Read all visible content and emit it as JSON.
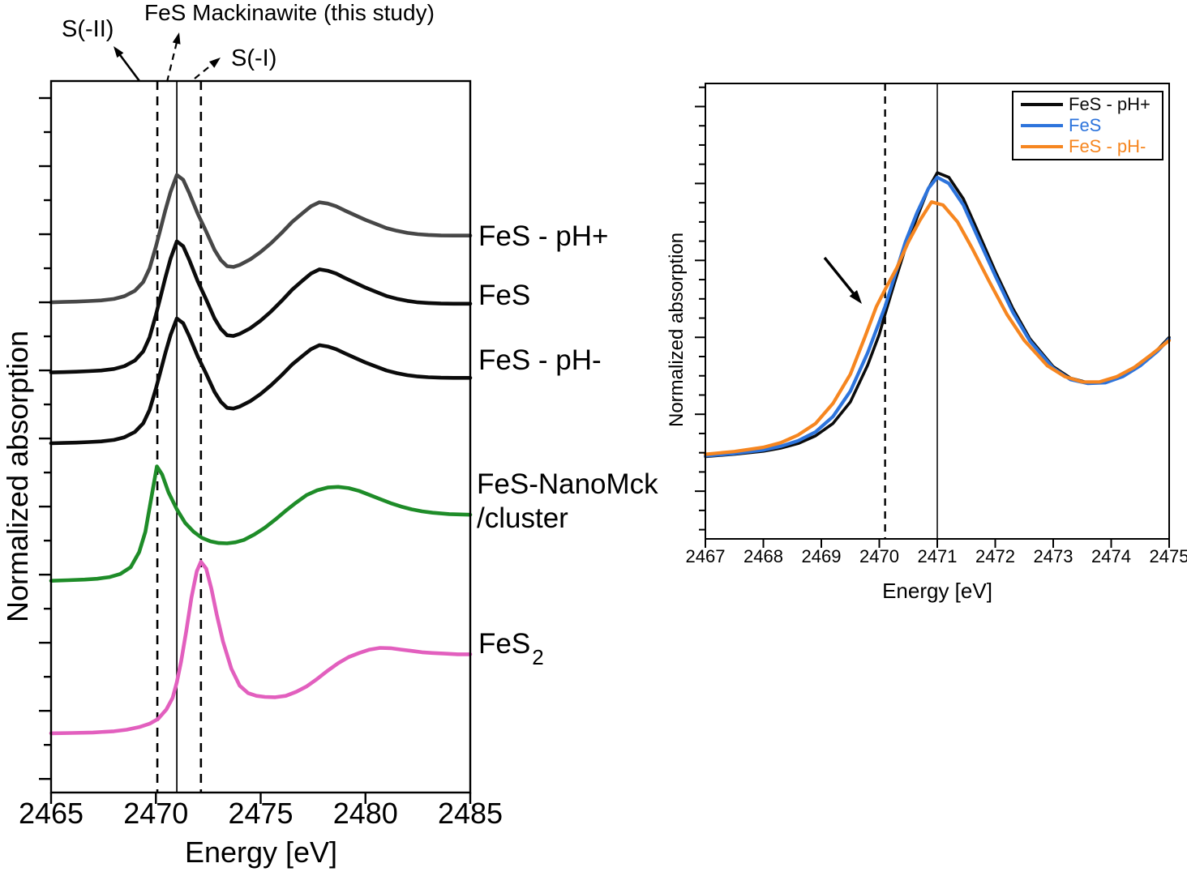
{
  "labels": {
    "nanomck_line1": "FeS-NanoMck",
    "nanomck_line2": "/cluster",
    "fes2_base": "FeS",
    "fes2_sub": "2"
  },
  "chart_data": [
    {
      "type": "line",
      "id": "left-panel",
      "xlabel": "Energy [eV]",
      "ylabel": "Normalized absorption",
      "xlim": [
        2465,
        2485
      ],
      "ylim": [
        0,
        10.45
      ],
      "grid": false,
      "xticks": [
        2465,
        2470,
        2475,
        2480,
        2485
      ],
      "yticks_major": [
        0.2,
        1.2,
        2.2,
        3.2,
        4.2,
        5.2,
        6.2,
        7.2,
        8.2,
        9.2,
        10.2
      ],
      "yticks_minor": [
        0.7,
        1.7,
        2.7,
        3.7,
        4.7,
        5.7,
        6.7,
        7.7,
        8.7,
        9.7
      ],
      "vlines": [
        {
          "x": 2470.07,
          "style": "dashed",
          "label": "S(-II)"
        },
        {
          "x": 2471.0,
          "style": "solid",
          "label": "FeS Mackinawite (this study)"
        },
        {
          "x": 2472.15,
          "style": "dashed",
          "label": "S(-I)"
        }
      ],
      "shapes": {
        "mackinawite": [
          [
            2465,
            0
          ],
          [
            2465.6,
            0.005
          ],
          [
            2466.2,
            0.01
          ],
          [
            2466.8,
            0.018
          ],
          [
            2467.4,
            0.028
          ],
          [
            2468,
            0.05
          ],
          [
            2468.5,
            0.09
          ],
          [
            2469,
            0.17
          ],
          [
            2469.4,
            0.3
          ],
          [
            2469.7,
            0.5
          ],
          [
            2470,
            0.82
          ],
          [
            2470.2,
            1.05
          ],
          [
            2470.45,
            1.35
          ],
          [
            2470.7,
            1.62
          ],
          [
            2471,
            1.87
          ],
          [
            2471.3,
            1.8
          ],
          [
            2471.6,
            1.6
          ],
          [
            2472,
            1.3
          ],
          [
            2472.4,
            1.04
          ],
          [
            2472.8,
            0.77
          ],
          [
            2473.1,
            0.62
          ],
          [
            2473.4,
            0.53
          ],
          [
            2473.7,
            0.52
          ],
          [
            2474,
            0.55
          ],
          [
            2474.5,
            0.63
          ],
          [
            2475,
            0.74
          ],
          [
            2475.5,
            0.87
          ],
          [
            2476,
            1.02
          ],
          [
            2476.5,
            1.18
          ],
          [
            2477,
            1.31
          ],
          [
            2477.4,
            1.41
          ],
          [
            2477.8,
            1.47
          ],
          [
            2478.2,
            1.45
          ],
          [
            2478.6,
            1.41
          ],
          [
            2479,
            1.35
          ],
          [
            2479.5,
            1.28
          ],
          [
            2480,
            1.21
          ],
          [
            2480.5,
            1.15
          ],
          [
            2481,
            1.09
          ],
          [
            2481.5,
            1.05
          ],
          [
            2482,
            1.02
          ],
          [
            2482.5,
            1.0
          ],
          [
            2483,
            0.99
          ],
          [
            2483.6,
            0.982
          ],
          [
            2484.2,
            0.98
          ],
          [
            2485,
            0.98
          ]
        ]
      },
      "series": [
        {
          "name": "FeS - pH+",
          "color": "#474747",
          "offset": 7.2,
          "scale": 1.0,
          "lw": 4.6,
          "shape": "mackinawite"
        },
        {
          "name": "FeS",
          "color": "#0b0b0b",
          "offset": 6.17,
          "scale": 1.03,
          "lw": 4.6,
          "shape": "mackinawite"
        },
        {
          "name": "FeS - pH-",
          "color": "#0b0b0b",
          "offset": 5.13,
          "scale": 0.98,
          "lw": 4.6,
          "shape": "mackinawite"
        },
        {
          "name": "FeS-NanoMck/cluster",
          "color": "#1e8c28",
          "offset": 3.11,
          "scale": 1.0,
          "lw": 4.6,
          "points": [
            [
              2465,
              0
            ],
            [
              2465.8,
              0.008
            ],
            [
              2466.6,
              0.018
            ],
            [
              2467.2,
              0.03
            ],
            [
              2467.8,
              0.055
            ],
            [
              2468.3,
              0.1
            ],
            [
              2468.8,
              0.2
            ],
            [
              2469.2,
              0.42
            ],
            [
              2469.5,
              0.72
            ],
            [
              2469.8,
              1.25
            ],
            [
              2470.05,
              1.68
            ],
            [
              2470.3,
              1.56
            ],
            [
              2470.6,
              1.3
            ],
            [
              2471,
              1.05
            ],
            [
              2471.4,
              0.85
            ],
            [
              2471.8,
              0.72
            ],
            [
              2472.2,
              0.63
            ],
            [
              2472.6,
              0.58
            ],
            [
              2473,
              0.555
            ],
            [
              2473.4,
              0.55
            ],
            [
              2473.8,
              0.565
            ],
            [
              2474.2,
              0.6
            ],
            [
              2474.7,
              0.68
            ],
            [
              2475.2,
              0.78
            ],
            [
              2475.7,
              0.9
            ],
            [
              2476.2,
              1.03
            ],
            [
              2476.7,
              1.15
            ],
            [
              2477.2,
              1.26
            ],
            [
              2477.7,
              1.33
            ],
            [
              2478.2,
              1.37
            ],
            [
              2478.7,
              1.38
            ],
            [
              2479.2,
              1.36
            ],
            [
              2479.7,
              1.32
            ],
            [
              2480.2,
              1.26
            ],
            [
              2480.7,
              1.2
            ],
            [
              2481.2,
              1.14
            ],
            [
              2481.7,
              1.09
            ],
            [
              2482.2,
              1.05
            ],
            [
              2482.7,
              1.02
            ],
            [
              2483.2,
              1.0
            ],
            [
              2484,
              0.98
            ],
            [
              2485,
              0.97
            ]
          ]
        },
        {
          "name": "FeS2",
          "color": "#e25fbe",
          "offset": 0.87,
          "scale": 1.0,
          "lw": 4.6,
          "points": [
            [
              2465,
              0
            ],
            [
              2466,
              0.005
            ],
            [
              2467,
              0.012
            ],
            [
              2468,
              0.03
            ],
            [
              2468.6,
              0.052
            ],
            [
              2469.2,
              0.09
            ],
            [
              2469.7,
              0.14
            ],
            [
              2470.1,
              0.21
            ],
            [
              2470.5,
              0.35
            ],
            [
              2470.8,
              0.52
            ],
            [
              2471,
              0.75
            ],
            [
              2471.2,
              1.05
            ],
            [
              2471.45,
              1.5
            ],
            [
              2471.7,
              2.0
            ],
            [
              2471.95,
              2.38
            ],
            [
              2472.15,
              2.52
            ],
            [
              2472.4,
              2.42
            ],
            [
              2472.65,
              2.12
            ],
            [
              2472.9,
              1.75
            ],
            [
              2473.2,
              1.35
            ],
            [
              2473.6,
              0.95
            ],
            [
              2474,
              0.7
            ],
            [
              2474.4,
              0.59
            ],
            [
              2474.8,
              0.55
            ],
            [
              2475.2,
              0.535
            ],
            [
              2475.7,
              0.53
            ],
            [
              2476.2,
              0.55
            ],
            [
              2476.7,
              0.61
            ],
            [
              2477.2,
              0.69
            ],
            [
              2477.7,
              0.8
            ],
            [
              2478.2,
              0.92
            ],
            [
              2478.7,
              1.03
            ],
            [
              2479.2,
              1.12
            ],
            [
              2479.7,
              1.18
            ],
            [
              2480.2,
              1.23
            ],
            [
              2480.7,
              1.255
            ],
            [
              2481.2,
              1.25
            ],
            [
              2481.7,
              1.23
            ],
            [
              2482.2,
              1.21
            ],
            [
              2482.7,
              1.19
            ],
            [
              2483.2,
              1.18
            ],
            [
              2483.8,
              1.17
            ],
            [
              2484.4,
              1.16
            ],
            [
              2485,
              1.16
            ]
          ]
        }
      ],
      "arrows": [
        {
          "from": [
            172,
            100
          ],
          "to": [
            140,
            57
          ],
          "style": "solid",
          "width": 2.6
        },
        {
          "from": [
            206,
            101
          ],
          "to": [
            221,
            40
          ],
          "style": "dashed",
          "width": 2.2
        },
        {
          "from": [
            240,
            97
          ],
          "to": [
            272,
            71
          ],
          "style": "dashed",
          "width": 2.2
        }
      ]
    },
    {
      "type": "line",
      "id": "right-panel",
      "xlabel": "Energy [eV]",
      "ylabel": "Normalized absorption",
      "xlim": [
        2467,
        2475
      ],
      "ylim": [
        -0.51,
        2.45
      ],
      "grid": false,
      "xticks": [
        2467,
        2468,
        2469,
        2470,
        2471,
        2472,
        2473,
        2474,
        2475
      ],
      "yticks_major": [
        -0.2,
        0.3,
        0.8,
        1.3,
        1.8,
        2.3
      ],
      "yticks_minor": [
        -0.45,
        -0.325,
        -0.075,
        0.05,
        0.175,
        0.425,
        0.55,
        0.675,
        0.925,
        1.05,
        1.175,
        1.425,
        1.55,
        1.675,
        1.925,
        2.05,
        2.175,
        2.425
      ],
      "vlines": [
        {
          "x": 2470.1,
          "style": "dashed"
        },
        {
          "x": 2471.0,
          "style": "solid"
        }
      ],
      "legend": {
        "position": "top-right"
      },
      "series": [
        {
          "name": "FeS - pH+",
          "color": "#0b0b0b",
          "offset": 0,
          "scale": 1,
          "lw": 3.6,
          "points": [
            [
              2467,
              0.025
            ],
            [
              2467.5,
              0.04
            ],
            [
              2468,
              0.06
            ],
            [
              2468.3,
              0.08
            ],
            [
              2468.6,
              0.11
            ],
            [
              2468.9,
              0.16
            ],
            [
              2469.2,
              0.24
            ],
            [
              2469.5,
              0.38
            ],
            [
              2469.8,
              0.62
            ],
            [
              2470,
              0.82
            ],
            [
              2470.1,
              0.95
            ],
            [
              2470.25,
              1.14
            ],
            [
              2470.45,
              1.38
            ],
            [
              2470.65,
              1.58
            ],
            [
              2470.85,
              1.77
            ],
            [
              2471,
              1.87
            ],
            [
              2471.2,
              1.84
            ],
            [
              2471.45,
              1.7
            ],
            [
              2471.7,
              1.49
            ],
            [
              2472,
              1.23
            ],
            [
              2472.3,
              0.99
            ],
            [
              2472.6,
              0.79
            ],
            [
              2473,
              0.61
            ],
            [
              2473.3,
              0.535
            ],
            [
              2473.6,
              0.505
            ],
            [
              2473.9,
              0.51
            ],
            [
              2474.2,
              0.55
            ],
            [
              2474.5,
              0.625
            ],
            [
              2474.8,
              0.72
            ],
            [
              2475,
              0.8
            ]
          ]
        },
        {
          "name": "FeS",
          "color": "#2d74dc",
          "offset": 0,
          "scale": 1,
          "lw": 4.2,
          "points": [
            [
              2467,
              0.03
            ],
            [
              2467.5,
              0.045
            ],
            [
              2468,
              0.068
            ],
            [
              2468.3,
              0.092
            ],
            [
              2468.6,
              0.128
            ],
            [
              2468.9,
              0.185
            ],
            [
              2469.2,
              0.285
            ],
            [
              2469.5,
              0.45
            ],
            [
              2469.8,
              0.7
            ],
            [
              2470,
              0.9
            ],
            [
              2470.1,
              1.0
            ],
            [
              2470.25,
              1.18
            ],
            [
              2470.45,
              1.42
            ],
            [
              2470.65,
              1.61
            ],
            [
              2470.85,
              1.77
            ],
            [
              2471,
              1.84
            ],
            [
              2471.2,
              1.8
            ],
            [
              2471.45,
              1.66
            ],
            [
              2471.7,
              1.45
            ],
            [
              2472,
              1.2
            ],
            [
              2472.3,
              0.965
            ],
            [
              2472.6,
              0.775
            ],
            [
              2473,
              0.6
            ],
            [
              2473.3,
              0.525
            ],
            [
              2473.6,
              0.5
            ],
            [
              2473.9,
              0.505
            ],
            [
              2474.2,
              0.545
            ],
            [
              2474.5,
              0.615
            ],
            [
              2474.8,
              0.71
            ],
            [
              2475,
              0.79
            ]
          ]
        },
        {
          "name": "FeS - pH-",
          "color": "#f68620",
          "offset": 0,
          "scale": 1,
          "lw": 4.2,
          "points": [
            [
              2467,
              0.04
            ],
            [
              2467.5,
              0.058
            ],
            [
              2468,
              0.085
            ],
            [
              2468.3,
              0.115
            ],
            [
              2468.6,
              0.165
            ],
            [
              2468.9,
              0.24
            ],
            [
              2469.2,
              0.37
            ],
            [
              2469.5,
              0.56
            ],
            [
              2469.75,
              0.8
            ],
            [
              2469.95,
              1.0
            ],
            [
              2470.1,
              1.11
            ],
            [
              2470.3,
              1.25
            ],
            [
              2470.5,
              1.42
            ],
            [
              2470.7,
              1.56
            ],
            [
              2470.9,
              1.68
            ],
            [
              2471.1,
              1.66
            ],
            [
              2471.35,
              1.55
            ],
            [
              2471.6,
              1.38
            ],
            [
              2471.9,
              1.16
            ],
            [
              2472.2,
              0.95
            ],
            [
              2472.5,
              0.78
            ],
            [
              2472.9,
              0.615
            ],
            [
              2473.2,
              0.545
            ],
            [
              2473.5,
              0.51
            ],
            [
              2473.8,
              0.51
            ],
            [
              2474.1,
              0.545
            ],
            [
              2474.4,
              0.605
            ],
            [
              2474.7,
              0.69
            ],
            [
              2475,
              0.78
            ]
          ]
        }
      ],
      "arrows": [
        {
          "from": [
            1017,
            318
          ],
          "to": [
            1063,
            375
          ],
          "style": "solid",
          "width": 3.4
        }
      ]
    }
  ]
}
